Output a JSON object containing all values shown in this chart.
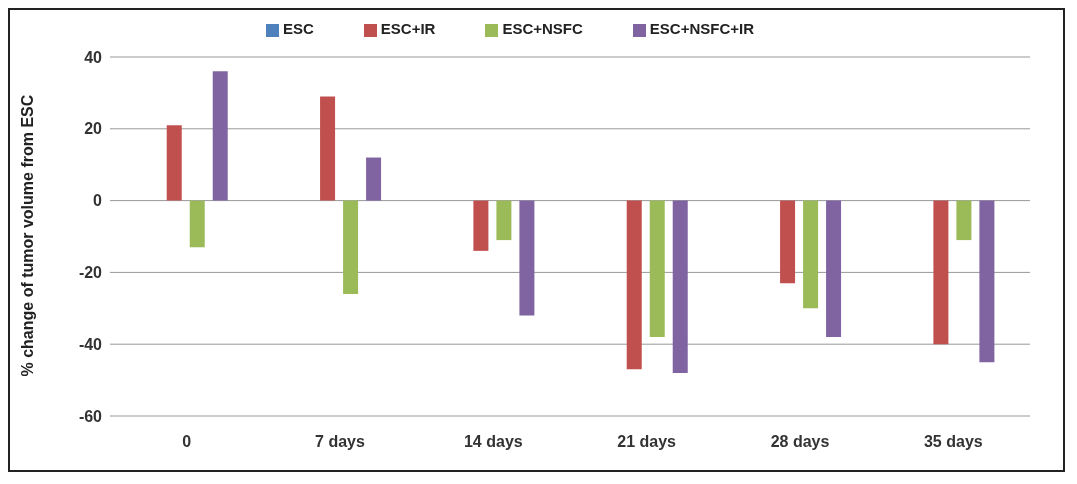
{
  "chart_data": {
    "type": "bar",
    "ylabel": "% change of tumor volume from ESC",
    "categories": [
      "0",
      "7 days",
      "14 days",
      "21 days",
      "28 days",
      "35 days"
    ],
    "series": [
      {
        "name": "ESC",
        "color": "#4f81bd",
        "values": [
          0,
          0,
          0,
          0,
          0,
          0
        ]
      },
      {
        "name": "ESC+IR",
        "color": "#c0504d",
        "values": [
          21,
          29,
          -14,
          -47,
          -23,
          -40
        ]
      },
      {
        "name": "ESC+NSFC",
        "color": "#9bbb59",
        "values": [
          -13,
          -26,
          -11,
          -38,
          -30,
          -11
        ]
      },
      {
        "name": "ESC+NSFC+IR",
        "color": "#8064a2",
        "values": [
          36,
          12,
          -32,
          -48,
          -38,
          -45
        ]
      }
    ],
    "ylim": [
      -60,
      40
    ],
    "yticks": [
      -60,
      -40,
      -20,
      0,
      20,
      40
    ],
    "grid": "y",
    "legend": "top"
  }
}
